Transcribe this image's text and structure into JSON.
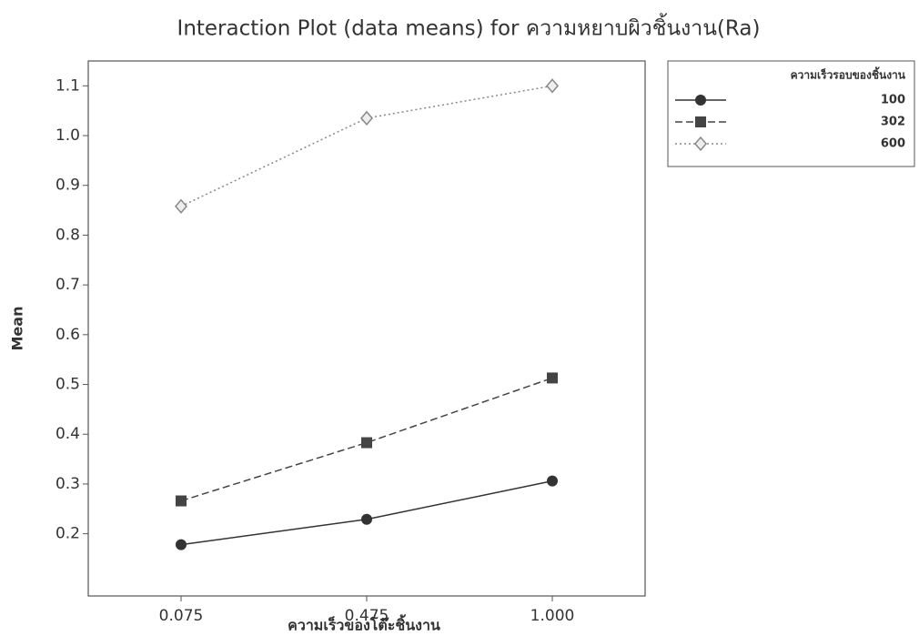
{
  "chart_data": {
    "type": "line",
    "title": "Interaction Plot (data means) for ความหยาบผิวชิ้นงาน(Ra)",
    "x_label": "ความเร็วของโต๊ะชิ้นงาน",
    "y_label": "Mean",
    "legend_title": "ความเร็วรอบของชิ้นงาน",
    "categories": [
      "0.075",
      "0.475",
      "1.000"
    ],
    "series": [
      {
        "name": "100",
        "color": "#333333",
        "marker": "circle",
        "line_style": "solid",
        "values": [
          0.178,
          0.229,
          0.306
        ]
      },
      {
        "name": "302",
        "color": "#444444",
        "marker": "square",
        "line_style": "dashed",
        "values": [
          0.266,
          0.383,
          0.513
        ]
      },
      {
        "name": "600",
        "color": "#888888",
        "marker": "diamond",
        "line_style": "dotted",
        "values": [
          0.858,
          1.035,
          1.1
        ]
      }
    ],
    "ylim": [
      0.075,
      1.15
    ],
    "yticks": [
      0.2,
      0.3,
      0.4,
      0.5,
      0.6,
      0.7,
      0.8,
      0.9,
      {
        "value": 1,
        "label": "1.0"
      },
      1.1
    ],
    "grid": false,
    "legend_position": "right"
  }
}
